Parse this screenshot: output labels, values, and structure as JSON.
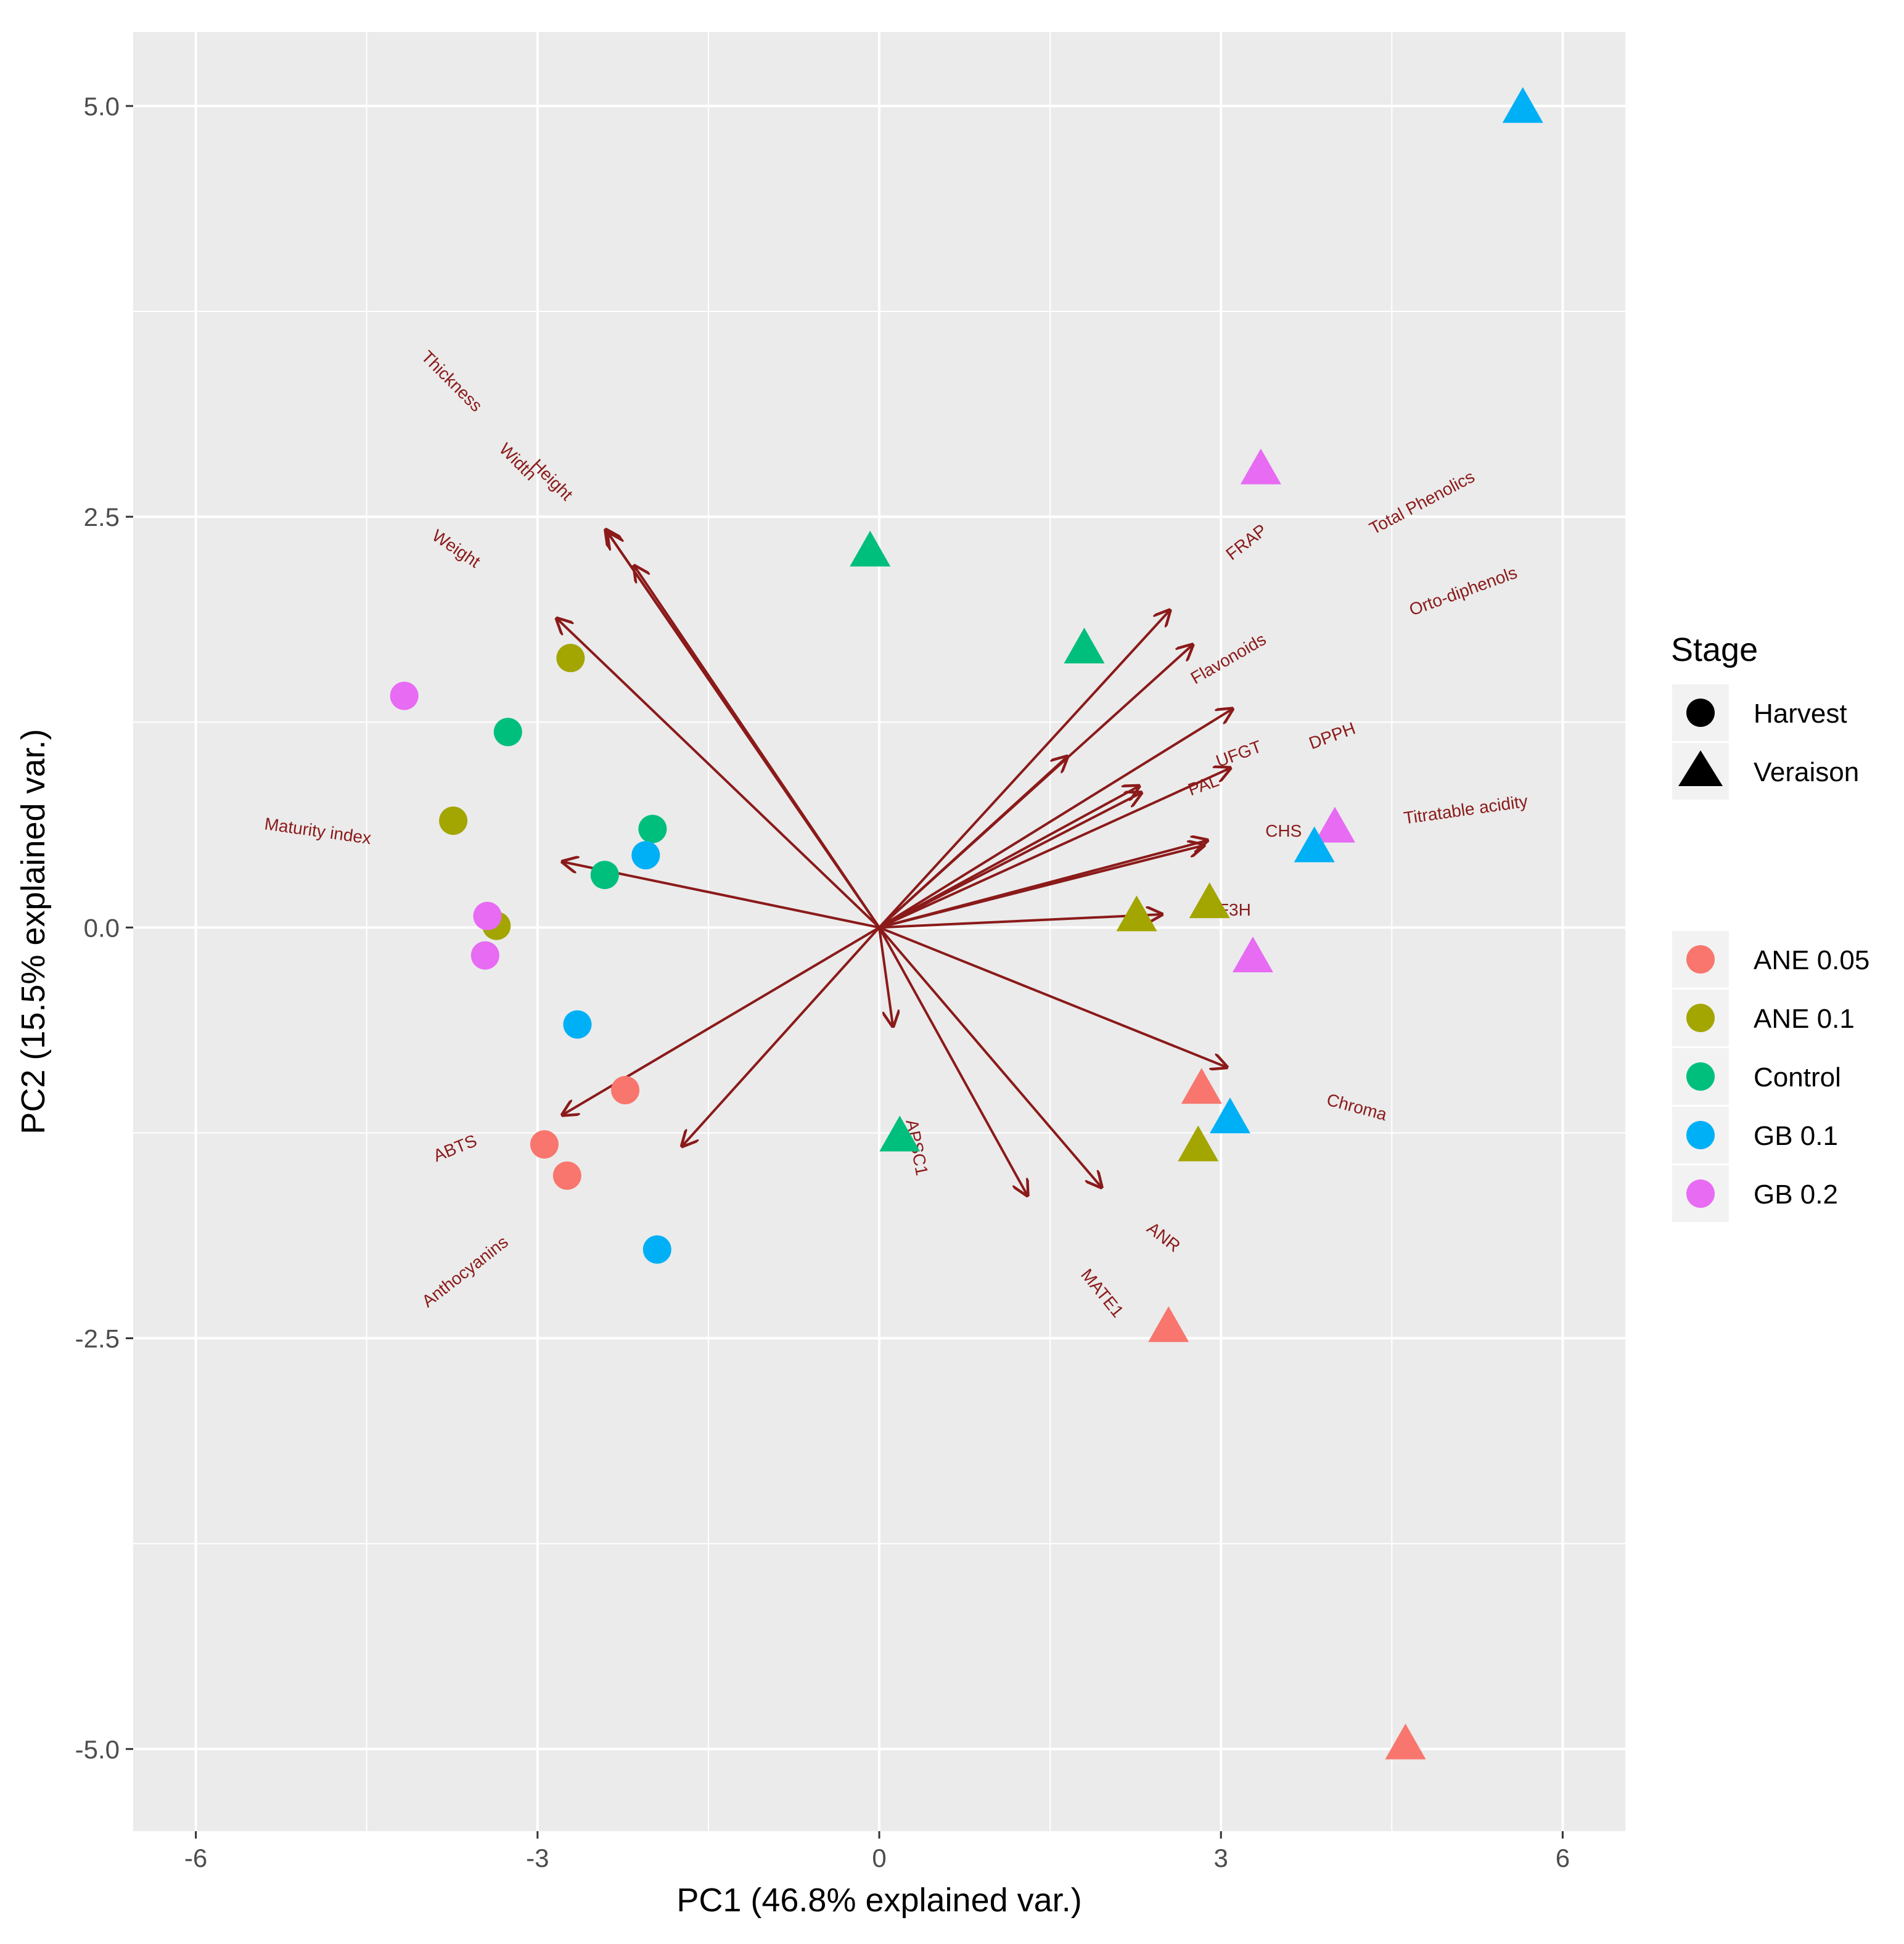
{
  "chart_data": {
    "type": "scatter",
    "subtype": "pca-biplot",
    "xlabel": "PC1 (46.8% explained var.)",
    "ylabel": "PC2 (15.5% explained var.)",
    "xlim": [
      -6.55,
      6.55
    ],
    "ylim": [
      -5.5,
      5.45
    ],
    "x_ticks": [
      -6,
      -3,
      0,
      3,
      6
    ],
    "x_tick_labels": [
      "-6",
      "-3",
      "0",
      "3",
      "6"
    ],
    "y_ticks": [
      -5,
      -2.5,
      0,
      2.5,
      5
    ],
    "y_tick_labels": [
      "-5.0",
      "-2.5",
      "0.0",
      "2.5",
      "5.0"
    ],
    "grid": true,
    "background": "#ebebeb",
    "arrow_color": "#8b1a1a",
    "legend_placement": "right",
    "legend_shape": {
      "title": "Stage",
      "entries": [
        {
          "label": "Harvest",
          "shape": "circle"
        },
        {
          "label": "Veraison",
          "shape": "triangle"
        }
      ]
    },
    "legend_color": {
      "entries": [
        {
          "label": "ANE 0.05",
          "color": "#F8766D"
        },
        {
          "label": "ANE 0.1",
          "color": "#A3A500"
        },
        {
          "label": "Control",
          "color": "#00BF7D"
        },
        {
          "label": "GB 0.1",
          "color": "#00B0F6"
        },
        {
          "label": "GB 0.2",
          "color": "#E76BF3"
        }
      ]
    },
    "points": [
      {
        "x": 5.65,
        "y": 4.98,
        "group": "GB 0.1",
        "stage": "Veraison"
      },
      {
        "x": 3.35,
        "y": 2.78,
        "group": "GB 0.2",
        "stage": "Veraison"
      },
      {
        "x": -0.08,
        "y": 2.28,
        "group": "Control",
        "stage": "Veraison"
      },
      {
        "x": 1.8,
        "y": 1.69,
        "group": "Control",
        "stage": "Veraison"
      },
      {
        "x": 4.0,
        "y": 0.6,
        "group": "GB 0.2",
        "stage": "Veraison"
      },
      {
        "x": 3.82,
        "y": 0.48,
        "group": "GB 0.1",
        "stage": "Veraison"
      },
      {
        "x": 2.9,
        "y": 0.14,
        "group": "ANE 0.1",
        "stage": "Veraison"
      },
      {
        "x": 2.26,
        "y": 0.06,
        "group": "ANE 0.1",
        "stage": "Veraison"
      },
      {
        "x": 3.28,
        "y": -0.19,
        "group": "GB 0.2",
        "stage": "Veraison"
      },
      {
        "x": 2.83,
        "y": -0.99,
        "group": "ANE 0.05",
        "stage": "Veraison"
      },
      {
        "x": 3.08,
        "y": -1.17,
        "group": "GB 0.1",
        "stage": "Veraison"
      },
      {
        "x": 2.8,
        "y": -1.34,
        "group": "ANE 0.1",
        "stage": "Veraison"
      },
      {
        "x": 0.18,
        "y": -1.28,
        "group": "Control",
        "stage": "Veraison"
      },
      {
        "x": 2.54,
        "y": -2.44,
        "group": "ANE 0.05",
        "stage": "Veraison"
      },
      {
        "x": 4.62,
        "y": -4.98,
        "group": "ANE 0.05",
        "stage": "Veraison"
      },
      {
        "x": -2.71,
        "y": 1.64,
        "group": "ANE 0.1",
        "stage": "Harvest"
      },
      {
        "x": -4.17,
        "y": 1.41,
        "group": "GB 0.2",
        "stage": "Harvest"
      },
      {
        "x": -3.26,
        "y": 1.19,
        "group": "Control",
        "stage": "Harvest"
      },
      {
        "x": -3.74,
        "y": 0.65,
        "group": "ANE 0.1",
        "stage": "Harvest"
      },
      {
        "x": -1.99,
        "y": 0.6,
        "group": "Control",
        "stage": "Harvest"
      },
      {
        "x": -2.05,
        "y": 0.44,
        "group": "GB 0.1",
        "stage": "Harvest"
      },
      {
        "x": -2.41,
        "y": 0.32,
        "group": "Control",
        "stage": "Harvest"
      },
      {
        "x": -3.36,
        "y": 0.01,
        "group": "ANE 0.1",
        "stage": "Harvest"
      },
      {
        "x": -3.44,
        "y": 0.07,
        "group": "GB 0.2",
        "stage": "Harvest"
      },
      {
        "x": -3.46,
        "y": -0.17,
        "group": "GB 0.2",
        "stage": "Harvest"
      },
      {
        "x": -2.65,
        "y": -0.59,
        "group": "GB 0.1",
        "stage": "Harvest"
      },
      {
        "x": -2.23,
        "y": -0.99,
        "group": "ANE 0.05",
        "stage": "Harvest"
      },
      {
        "x": -2.94,
        "y": -1.32,
        "group": "ANE 0.05",
        "stage": "Harvest"
      },
      {
        "x": -2.74,
        "y": -1.51,
        "group": "ANE 0.05",
        "stage": "Harvest"
      },
      {
        "x": -1.95,
        "y": -1.96,
        "group": "GB 0.1",
        "stage": "Harvest"
      }
    ],
    "loadings": [
      {
        "name": "Thickness",
        "x": -2.4,
        "y": 2.42,
        "lx": -3.76,
        "ly": 3.32,
        "angle": 45
      },
      {
        "name": "Width",
        "x": -2.38,
        "y": 2.4,
        "lx": -3.18,
        "ly": 2.83,
        "angle": 45
      },
      {
        "name": "Height",
        "x": -2.15,
        "y": 2.2,
        "lx": -2.88,
        "ly": 2.72,
        "angle": 45
      },
      {
        "name": "Weight",
        "x": -2.83,
        "y": 1.88,
        "lx": -3.72,
        "ly": 2.3,
        "angle": 34
      },
      {
        "name": "Maturity index",
        "x": -2.78,
        "y": 0.4,
        "lx": -4.93,
        "ly": 0.58,
        "angle": 8
      },
      {
        "name": "ABTS",
        "x": -2.78,
        "y": -1.14,
        "lx": -3.72,
        "ly": -1.35,
        "angle": -22
      },
      {
        "name": "Anthocyanins",
        "x": -1.73,
        "y": -1.33,
        "lx": -3.63,
        "ly": -2.1,
        "angle": -38
      },
      {
        "name": "APSC1",
        "x": 0.12,
        "y": -0.6,
        "lx": 0.32,
        "ly": -1.34,
        "angle": 79
      },
      {
        "name": "MATE1",
        "x": 1.3,
        "y": -1.63,
        "lx": 1.95,
        "ly": -2.23,
        "angle": 51
      },
      {
        "name": "ANR",
        "x": 1.95,
        "y": -1.58,
        "lx": 2.49,
        "ly": -1.89,
        "angle": 38
      },
      {
        "name": "Chroma",
        "x": 3.05,
        "y": -0.85,
        "lx": 4.19,
        "ly": -1.1,
        "angle": 15
      },
      {
        "name": "F3H",
        "x": 2.48,
        "y": 0.08,
        "lx": 3.12,
        "ly": 0.1,
        "angle": 0
      },
      {
        "name": "CHS",
        "x": 2.85,
        "y": 0.5,
        "lx": 3.55,
        "ly": 0.58,
        "angle": 0
      },
      {
        "name": "Titratable acidity",
        "x": 2.88,
        "y": 0.53,
        "lx": 5.15,
        "ly": 0.71,
        "angle": -8
      },
      {
        "name": "PAL",
        "x": 2.3,
        "y": 0.82,
        "lx": 2.85,
        "ly": 0.86,
        "angle": -20
      },
      {
        "name": "UFGT",
        "x": 3.08,
        "y": 0.97,
        "lx": 3.16,
        "ly": 1.05,
        "angle": -20
      },
      {
        "name": "DPPH",
        "x": 3.1,
        "y": 1.33,
        "lx": 3.98,
        "ly": 1.16,
        "angle": -20
      },
      {
        "name": "Flavonoids",
        "x": 2.75,
        "y": 1.72,
        "lx": 3.07,
        "ly": 1.63,
        "angle": -30
      },
      {
        "name": "FRAP",
        "x": 2.55,
        "y": 1.93,
        "lx": 3.23,
        "ly": 2.34,
        "angle": -38
      },
      {
        "name": "Total Phenolics",
        "x": 1.65,
        "y": 1.04,
        "lx": 4.77,
        "ly": 2.58,
        "angle": -28
      },
      {
        "name": "Orto-diphenols",
        "x": 2.28,
        "y": 0.86,
        "lx": 5.13,
        "ly": 2.04,
        "angle": -20
      }
    ]
  }
}
